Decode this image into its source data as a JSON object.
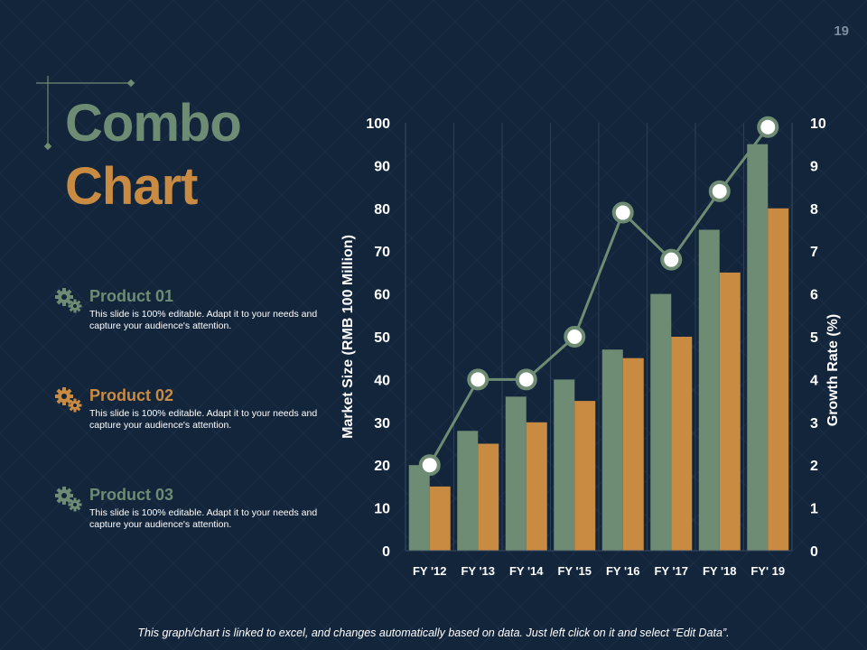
{
  "slide": {
    "page_number": "19",
    "title_line1": "Combo",
    "title_line2": "Chart",
    "footer_note": "This graph/chart is linked to excel, and changes automatically based on data.  Just left click on it and select “Edit Data”."
  },
  "colors": {
    "background": "#13253b",
    "green": "#6e8c73",
    "orange": "#c98b42",
    "line": "#6e8c73",
    "text": "#ffffff"
  },
  "products": [
    {
      "title": "Product 01",
      "description": "This slide is 100% editable. Adapt it to your needs and capture your audience's attention.",
      "icon": "gears-icon",
      "color": "#6e8c73"
    },
    {
      "title": "Product 02",
      "description": "This slide is 100% editable. Adapt it to your needs and capture your audience's attention.",
      "icon": "gears-icon",
      "color": "#c98b42"
    },
    {
      "title": "Product 03",
      "description": "This slide is 100% editable. Adapt it to your needs and capture your audience's attention.",
      "icon": "gears-icon",
      "color": "#6e8c73"
    }
  ],
  "chart_data": {
    "type": "bar",
    "categories": [
      "FY '12",
      "FY '13",
      "FY '14",
      "FY '15",
      "FY '16",
      "FY '17",
      "FY '18",
      "FY' 19"
    ],
    "series": [
      {
        "name": "Product 01",
        "type": "bar",
        "axis": "left",
        "values": [
          20,
          28,
          36,
          40,
          47,
          60,
          75,
          95
        ]
      },
      {
        "name": "Product 02",
        "type": "bar",
        "axis": "left",
        "values": [
          15,
          25,
          30,
          35,
          45,
          50,
          65,
          80
        ]
      },
      {
        "name": "Product 03",
        "type": "line",
        "axis": "right",
        "values": [
          2,
          4,
          4,
          5,
          7.9,
          6.8,
          8.4,
          9.9
        ]
      }
    ],
    "ylabel": "Market Size (RMB 100 Million)",
    "ylabel_right": "Growth Rate (%)",
    "ylim": [
      0,
      100
    ],
    "ylim_right": [
      0,
      10
    ],
    "yticks": [
      "0",
      "10",
      "20",
      "30",
      "40",
      "50",
      "60",
      "70",
      "80",
      "90",
      "100"
    ],
    "yticks_right": [
      "0",
      "1",
      "2",
      "3",
      "4",
      "5",
      "6",
      "7",
      "8",
      "9",
      "10"
    ],
    "grid": "vertical"
  }
}
